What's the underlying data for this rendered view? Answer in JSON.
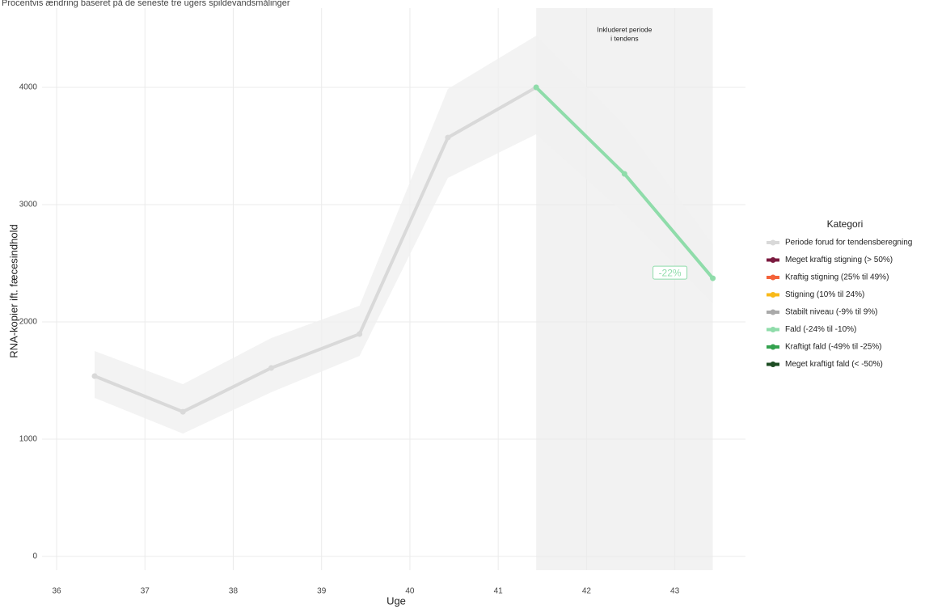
{
  "chart_data": {
    "type": "line",
    "title": "Procentvis ændring baseret på de seneste tre ugers spildevandsmålinger",
    "x_label": "Uge",
    "y_label": "RNA-kopier ift. fæcesindhold",
    "x": [
      36.43,
      37.43,
      38.43,
      39.43,
      40.43,
      41.43,
      42.43,
      43.43
    ],
    "series": [
      {
        "name": "Periode forud for tendensberegning",
        "color": "#d9d9d9",
        "values": [
          1538,
          1234,
          1607,
          1897,
          3572,
          4000,
          null,
          null
        ]
      },
      {
        "name": "Fald (-24% til -10%)",
        "color": "#8fdcaa",
        "values": [
          null,
          null,
          null,
          null,
          null,
          4000,
          3262,
          2372
        ]
      }
    ],
    "ribbon": {
      "color": "#f0f0f0",
      "upper": [
        1752,
        1469,
        1862,
        2138,
        3986,
        4441,
        3676,
        2662
      ],
      "lower": [
        1352,
        1048,
        1400,
        1710,
        3228,
        3600,
        2924,
        2159
      ]
    },
    "highlight": {
      "x": [
        41.43,
        43.43
      ],
      "color": "#f2f2f2",
      "label": [
        "Inkluderet periode",
        "i tendens"
      ]
    },
    "annotation": {
      "text": "-22%",
      "color": "#8fdcaa"
    },
    "xlim": [
      35.835,
      43.8
    ],
    "xticks": [
      36,
      37,
      38,
      39,
      40,
      41,
      42,
      43
    ],
    "ylim": [
      -117,
      4676
    ],
    "yticks": [
      0,
      1000,
      2000,
      3000,
      4000
    ],
    "grid": true,
    "legend": {
      "title": "Kategori",
      "position": "right",
      "items": [
        {
          "name": "Periode forud for tendensberegning",
          "color": "#d9d9d9"
        },
        {
          "name": "Meget kraftig stigning (> 50%)",
          "color": "#7b1a3f"
        },
        {
          "name": "Kraftig stigning (25% til 49%)",
          "color": "#f4623a"
        },
        {
          "name": "Stigning (10% til 24%)",
          "color": "#f9b918"
        },
        {
          "name": "Stabilt niveau (-9% til 9%)",
          "color": "#aaaaaa"
        },
        {
          "name": "Fald (-24% til -10%)",
          "color": "#8fdcaa"
        },
        {
          "name": "Kraftigt fald (-49% til -25%)",
          "color": "#34a24f"
        },
        {
          "name": "Meget kraftigt fald (< -50%)",
          "color": "#1d4d23"
        }
      ]
    }
  }
}
